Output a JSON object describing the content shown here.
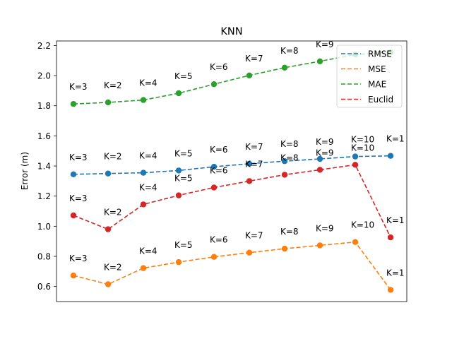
{
  "chart_data": {
    "type": "line",
    "title": "KNN",
    "xlabel": "",
    "ylabel": "Error (m)",
    "ylim": [
      0.5,
      2.23
    ],
    "yticks": [
      0.6,
      0.8,
      1.0,
      1.2,
      1.4,
      1.6,
      1.8,
      2.0,
      2.2
    ],
    "ytick_labels": [
      "0.6",
      "0.8",
      "1.0",
      "1.2",
      "1.4",
      "1.6",
      "1.8",
      "2.0",
      "2.2"
    ],
    "xticks_visible": false,
    "grid": false,
    "legend_position": "top-right",
    "x": [
      0,
      1,
      2,
      3,
      4,
      5,
      6,
      7,
      8,
      9
    ],
    "series": [
      {
        "name": "RMSE",
        "color": "#1f77b4",
        "values": [
          1.345,
          1.35,
          1.355,
          1.37,
          1.395,
          1.415,
          1.432,
          1.447,
          1.463,
          1.467
        ],
        "labels": [
          "K=3",
          "K=2",
          "K=4",
          "K=5",
          "K=6",
          "K=7",
          "K=8",
          "K=9",
          "K=10",
          "K=1"
        ]
      },
      {
        "name": "MSE",
        "color": "#ff7f0e",
        "values": [
          0.673,
          0.615,
          0.722,
          0.762,
          0.797,
          0.825,
          0.851,
          0.873,
          0.895,
          0.578
        ],
        "labels": [
          "K=3",
          "K=2",
          "K=4",
          "K=5",
          "K=6",
          "K=7",
          "K=8",
          "K=9",
          "K=10",
          "K=1"
        ]
      },
      {
        "name": "MAE",
        "color": "#2ca02c",
        "values": [
          1.812,
          1.822,
          1.838,
          1.883,
          1.943,
          2.001,
          2.053,
          2.095,
          2.14,
          2.155
        ],
        "labels": [
          "K=3",
          "K=2",
          "K=4",
          "K=5",
          "K=6",
          "K=7",
          "K=8",
          "K=9",
          "",
          ""
        ]
      },
      {
        "name": "Euclid",
        "color": "#d62728",
        "values": [
          1.072,
          0.98,
          1.145,
          1.205,
          1.257,
          1.3,
          1.342,
          1.375,
          1.408,
          0.926
        ],
        "labels": [
          "K=3",
          "K=2",
          "K=4",
          "K=5",
          "K=6",
          "K=7",
          "K=8",
          "K=9",
          "K=10",
          "K=1"
        ]
      }
    ]
  }
}
